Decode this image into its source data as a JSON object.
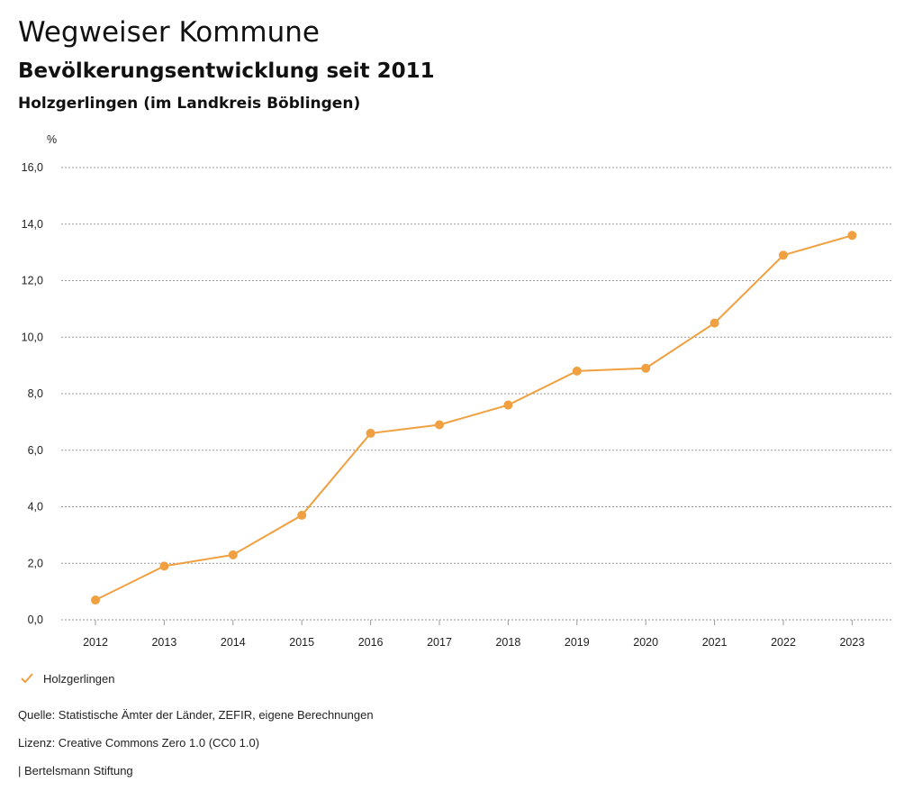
{
  "header": {
    "title": "Wegweiser Kommune",
    "subtitle": "Bevölkerungsentwicklung seit 2011",
    "region": "Holzgerlingen (im Landkreis Böblingen)"
  },
  "chart_data": {
    "type": "line",
    "title": "Bevölkerungsentwicklung seit 2011",
    "ylabel": "%",
    "xlabel": "",
    "ylim": [
      0,
      16
    ],
    "yticks": [
      0,
      2,
      4,
      6,
      8,
      10,
      12,
      14,
      16
    ],
    "ytick_labels": [
      "0,0",
      "2,0",
      "4,0",
      "6,0",
      "8,0",
      "10,0",
      "12,0",
      "14,0",
      "16,0"
    ],
    "categories": [
      "2012",
      "2013",
      "2014",
      "2015",
      "2016",
      "2017",
      "2018",
      "2019",
      "2020",
      "2021",
      "2022",
      "2023"
    ],
    "series": [
      {
        "name": "Holzgerlingen",
        "color": "#f0a040",
        "values": [
          0.7,
          1.9,
          2.3,
          3.7,
          6.6,
          6.9,
          7.6,
          8.8,
          8.9,
          10.5,
          12.9,
          13.6
        ]
      }
    ],
    "grid": true,
    "legend": "bottom-left"
  },
  "legend": {
    "label": "Holzgerlingen",
    "icon": "check-icon"
  },
  "footer": {
    "source": "Quelle: Statistische Ämter der Länder, ZEFIR, eigene Berechnungen",
    "license": "Lizenz: Creative Commons Zero 1.0 (CC0 1.0)",
    "publisher": "| Bertelsmann Stiftung"
  }
}
